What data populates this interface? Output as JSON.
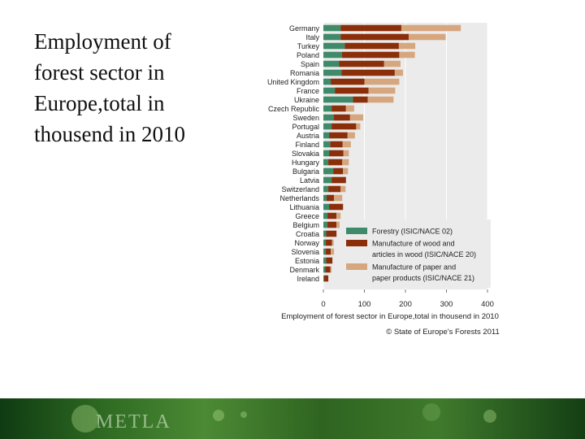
{
  "slide": {
    "title": "Employment of\nforest sector in\nEurope,total in\nthousend in 2010"
  },
  "footer": {
    "logo_text": "METLA"
  },
  "chart_data": {
    "type": "bar",
    "orientation": "horizontal",
    "stacked": true,
    "categories": [
      "Germany",
      "Italy",
      "Turkey",
      "Poland",
      "Spain",
      "Romania",
      "United Kingdom",
      "France",
      "Ukraine",
      "Czech Republic",
      "Sweden",
      "Portugal",
      "Austria",
      "Finland",
      "Slovakia",
      "Hungary",
      "Bulgaria",
      "Latvia",
      "Switzerland",
      "Netherlands",
      "Lithuania",
      "Greece",
      "Belgium",
      "Croatia",
      "Norway",
      "Slovenia",
      "Estonia",
      "Denmark",
      "Ireland"
    ],
    "series": [
      {
        "name": "Forestry (ISIC/NACE 02)",
        "color": "#3f8a6a",
        "values": [
          42,
          42,
          52,
          45,
          38,
          44,
          18,
          28,
          72,
          20,
          25,
          20,
          14,
          17,
          14,
          12,
          24,
          20,
          12,
          8,
          14,
          10,
          10,
          7,
          6,
          6,
          7,
          5,
          2
        ]
      },
      {
        "name": "Manufacture of wood and articles in wood (ISIC/NACE 20)",
        "color": "#8b2e0a",
        "values": [
          148,
          166,
          132,
          140,
          110,
          130,
          82,
          82,
          36,
          35,
          40,
          60,
          45,
          30,
          35,
          34,
          24,
          35,
          30,
          18,
          34,
          22,
          22,
          25,
          15,
          12,
          15,
          12,
          10
        ]
      },
      {
        "name": "Manufacture of paper and paper products (ISIC/NACE 21)",
        "color": "#d6a77f",
        "values": [
          145,
          90,
          40,
          38,
          40,
          20,
          85,
          65,
          63,
          20,
          32,
          10,
          18,
          20,
          13,
          16,
          12,
          0,
          12,
          20,
          0,
          10,
          10,
          0,
          4,
          8,
          0,
          3,
          0
        ]
      }
    ],
    "xlabel": "Employment of forest sector in Europe,total in thousend in 2010",
    "xlim": [
      0,
      400
    ],
    "xticks": [
      0,
      100,
      200,
      300,
      400
    ],
    "grid": true,
    "legend_position": "bottom-right",
    "source_note": "© State of Europe's Forests 2011"
  }
}
